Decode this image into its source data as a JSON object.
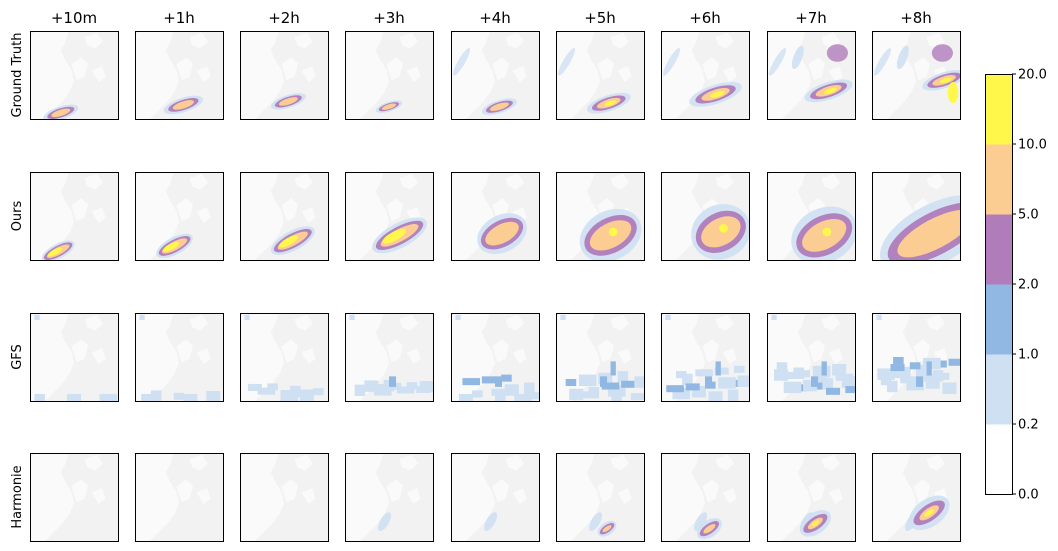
{
  "chart_data": {
    "type": "heatmap",
    "columns": [
      "+10m",
      "+1h",
      "+2h",
      "+3h",
      "+4h",
      "+5h",
      "+6h",
      "+7h",
      "+8h"
    ],
    "rows": [
      "Ground Truth",
      "Ours",
      "GFS",
      "Harmonie"
    ],
    "colorbar": {
      "ticks": [
        "0.0",
        "0.2",
        "1.0",
        "2.0",
        "5.0",
        "10.0",
        "20.0"
      ],
      "bins": [
        {
          "from": 0.0,
          "to": 0.2,
          "color": "#ffffff"
        },
        {
          "from": 0.2,
          "to": 1.0,
          "color": "#cfe0f2"
        },
        {
          "from": 1.0,
          "to": 2.0,
          "color": "#91b8e3"
        },
        {
          "from": 2.0,
          "to": 5.0,
          "color": "#b07cba"
        },
        {
          "from": 5.0,
          "to": 10.0,
          "color": "#fccd92"
        },
        {
          "from": 10.0,
          "to": 20.0,
          "color": "#fff74a"
        }
      ]
    },
    "map_colors": {
      "background": "#f2f2f2",
      "land": "#fafafa"
    }
  }
}
